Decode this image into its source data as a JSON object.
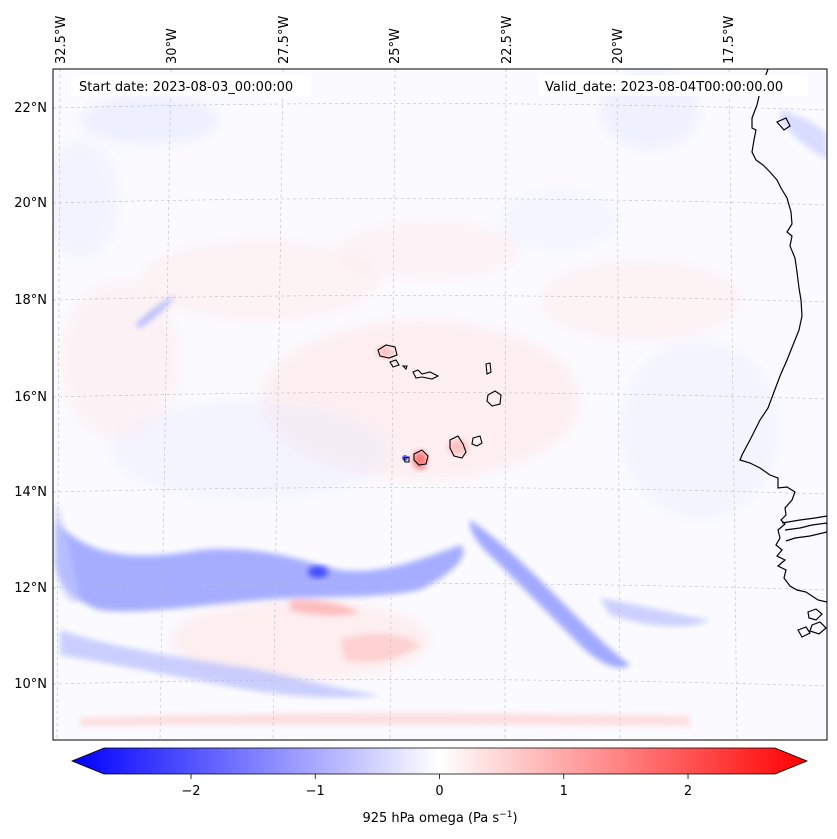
{
  "map": {
    "start_date_text": "Start date: 2023-08-03_00:00:00",
    "valid_date_text": "Valid_date: 2023-08-04T00:00:00.00",
    "lon_labels": [
      "32.5°W",
      "30°W",
      "27.5°W",
      "25°W",
      "22.5°W",
      "20°W",
      "17.5°W"
    ],
    "lat_labels": [
      "22°N",
      "20°N",
      "18°N",
      "16°N",
      "14°N",
      "12°N",
      "10°N"
    ]
  },
  "colorbar": {
    "ticks": [
      -2,
      -1,
      0,
      1,
      2
    ],
    "tick_labels": [
      "−2",
      "−1",
      "0",
      "1",
      "2"
    ],
    "vmin": -2.7,
    "vmax": 2.7,
    "label_main": "925 hPa omega (Pa s",
    "label_exp": "−1",
    "label_end": ")",
    "cmap": "bwr",
    "neg_color": "#0000ff",
    "zero_color": "#ffffff",
    "pos_color": "#ff0000"
  },
  "colors": {
    "ocean_background": "#fbfbff",
    "weak_positive": "#ffe6e6",
    "weak_negative": "#e6e8ff",
    "coastline": "#000000",
    "gridline": "#bdbdbd"
  }
}
